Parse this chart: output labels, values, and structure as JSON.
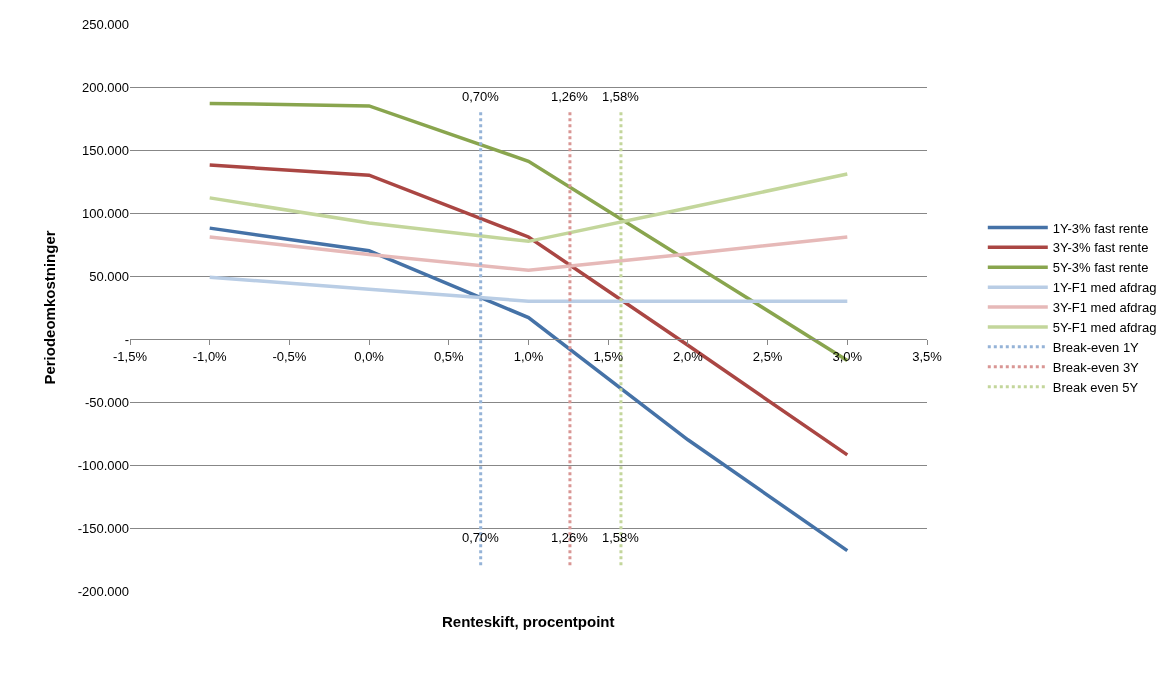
{
  "chart_data": {
    "type": "line",
    "xlabel": "Renteskift, procentpoint",
    "ylabel": "Periodeomkostninger",
    "x": [
      -1.0,
      0.0,
      1.0,
      2.0,
      3.0
    ],
    "series": [
      {
        "name": "1Y-3% fast rente",
        "color": "#4572a7",
        "values": [
          88000,
          70000,
          17000,
          -80000,
          -168000
        ]
      },
      {
        "name": "3Y-3% fast rente",
        "color": "#aa4643",
        "values": [
          138000,
          130000,
          81000,
          -5000,
          -92000
        ]
      },
      {
        "name": "5Y-3% fast rente",
        "color": "#89a54e",
        "values": [
          187000,
          185000,
          141000,
          62000,
          -17000
        ]
      },
      {
        "name": "1Y-F1 med afdrag",
        "color": "#b9cde5",
        "values": [
          49000,
          39500,
          30000,
          30000,
          30000
        ]
      },
      {
        "name": "3Y-F1 med afdrag",
        "color": "#e6b9b8",
        "values": [
          81000,
          67000,
          54500,
          67500,
          81000
        ]
      },
      {
        "name": "5Y-F1 med afdrag",
        "color": "#c3d69b",
        "values": [
          112000,
          92000,
          77500,
          104000,
          131000
        ]
      },
      {
        "name": "Break-even 1Y",
        "color": "#95b3d7",
        "x": [
          0.7,
          0.7
        ],
        "values": [
          180000,
          -180000
        ],
        "line_style": "dotted"
      },
      {
        "name": "Break-even 3Y",
        "color": "#d99694",
        "x": [
          1.26,
          1.26
        ],
        "values": [
          180000,
          -180000
        ],
        "line_style": "dotted"
      },
      {
        "name": "Break even 5Y",
        "color": "#c3d69b",
        "x": [
          1.58,
          1.58
        ],
        "values": [
          180000,
          -180000
        ],
        "line_style": "dotted"
      }
    ],
    "annotations": [
      {
        "text": "0,70%",
        "x": 0.7,
        "y": 180000
      },
      {
        "text": "1,26%",
        "x": 1.26,
        "y": 180000
      },
      {
        "text": "1,58%",
        "x": 1.58,
        "y": 180000
      },
      {
        "text": "0,70%",
        "x": 0.7,
        "y": -170000
      },
      {
        "text": "1,26%",
        "x": 1.26,
        "y": -170000
      },
      {
        "text": "1,58%",
        "x": 1.58,
        "y": -170000
      }
    ],
    "xlim": [
      -1.5,
      3.5
    ],
    "xticks": [
      {
        "value": -1.5,
        "label": "-1,5%"
      },
      {
        "value": -1.0,
        "label": "-1,0%"
      },
      {
        "value": -0.5,
        "label": "-0,5%"
      },
      {
        "value": 0.0,
        "label": "0,0%"
      },
      {
        "value": 0.5,
        "label": "0,5%"
      },
      {
        "value": 1.0,
        "label": "1,0%"
      },
      {
        "value": 1.5,
        "label": "1,5%"
      },
      {
        "value": 2.0,
        "label": "2,0%"
      },
      {
        "value": 2.5,
        "label": "2,5%"
      },
      {
        "value": 3.0,
        "label": "3,0%"
      },
      {
        "value": 3.5,
        "label": "3,5%"
      }
    ],
    "ylim": [
      -200000,
      250000
    ],
    "yticks": [
      {
        "value": -200000,
        "label": "-200.000"
      },
      {
        "value": -150000,
        "label": "-150.000"
      },
      {
        "value": -100000,
        "label": "-100.000"
      },
      {
        "value": -50000,
        "label": "-50.000"
      },
      {
        "value": 0,
        "label": "-"
      },
      {
        "value": 50000,
        "label": "50.000"
      },
      {
        "value": 100000,
        "label": "100.000"
      },
      {
        "value": 150000,
        "label": "150.000"
      },
      {
        "value": 200000,
        "label": "200.000"
      },
      {
        "value": 250000,
        "label": "250.000"
      }
    ],
    "grid": "y",
    "legend": "right",
    "marker": "none",
    "line_style": "solid"
  }
}
